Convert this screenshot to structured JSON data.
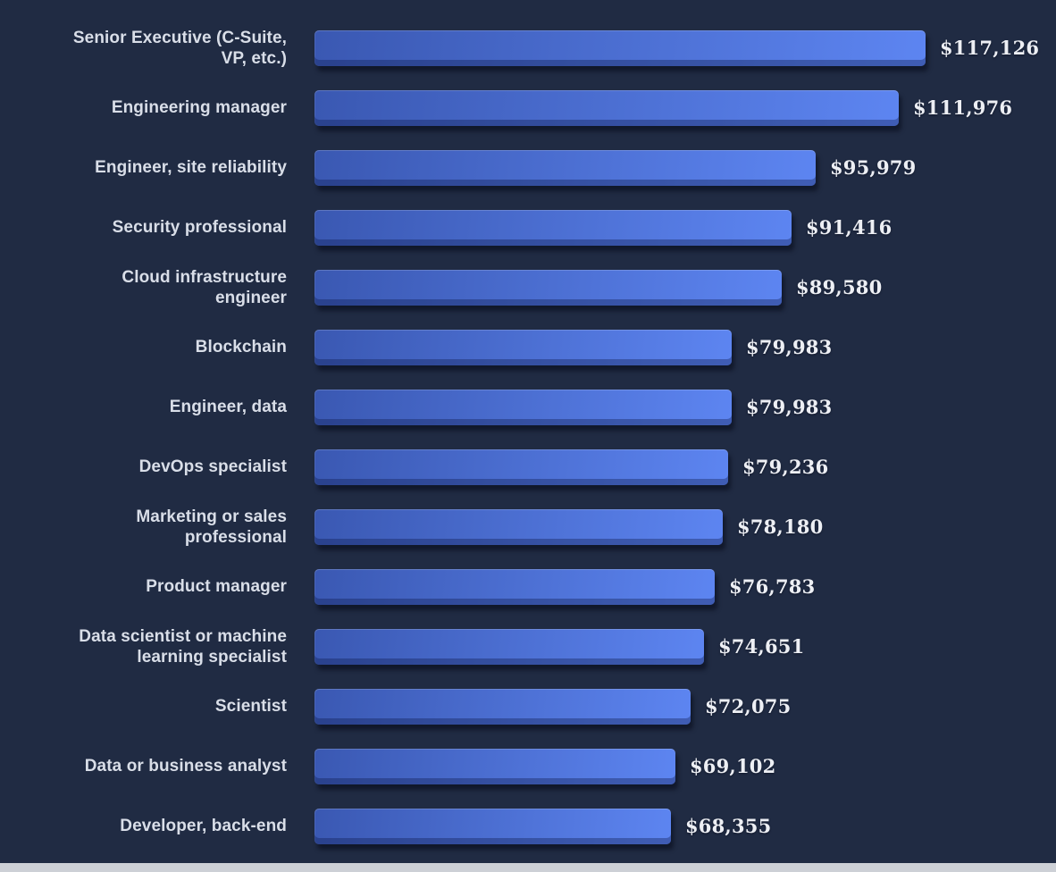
{
  "page": {
    "background_color": "#202b43",
    "bottom_strip_color": "#cdd0d6"
  },
  "chart_data": {
    "type": "bar",
    "orientation": "horizontal",
    "categories": [
      "Senior Executive (C-Suite, VP, etc.)",
      "Engineering manager",
      "Engineer, site reliability",
      "Security professional",
      "Cloud infrastructure engineer",
      "Blockchain",
      "Engineer, data",
      "DevOps specialist",
      "Marketing or sales professional",
      "Product manager",
      "Data scientist or machine learning specialist",
      "Scientist",
      "Data or business analyst",
      "Developer, back-end"
    ],
    "values": [
      117126,
      111976,
      95979,
      91416,
      89580,
      79983,
      79983,
      79236,
      78180,
      76783,
      74651,
      72075,
      69102,
      68355
    ],
    "value_labels": [
      "$117,126",
      "$111,976",
      "$95,979",
      "$91,416",
      "$89,580",
      "$79,983",
      "$79,983",
      "$79,236",
      "$78,180",
      "$76,783",
      "$74,651",
      "$72,075",
      "$69,102",
      "$68,355"
    ],
    "xlim": [
      0,
      117126
    ],
    "grid": false,
    "legend": false,
    "bar_gradient_start": "#3a58b2",
    "bar_gradient_end": "#5d85f1",
    "label_color": "#d9dee8",
    "value_color": "#edeff4"
  }
}
